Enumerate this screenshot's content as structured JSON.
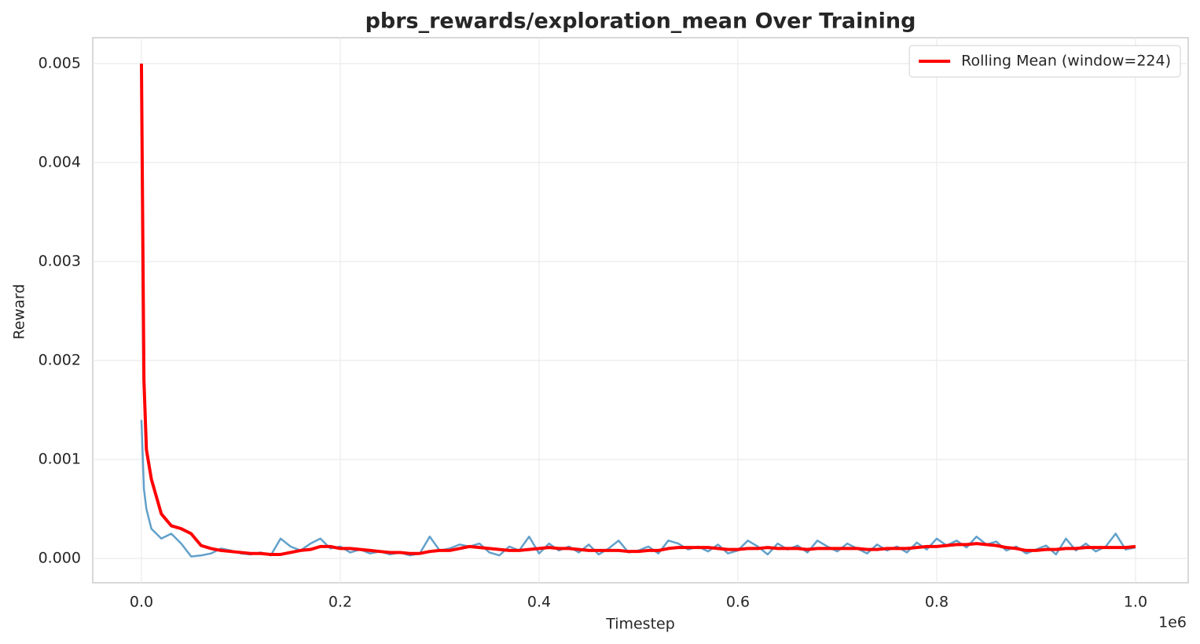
{
  "chart_data": {
    "type": "line",
    "title": "pbrs_rewards/exploration_mean Over Training",
    "x_label": "Timestep",
    "y_label": "Reward",
    "x_offset_label": "1e6",
    "xlim": [
      -49000,
      1053000
    ],
    "ylim": [
      -0.000246,
      0.005262
    ],
    "xticks": [
      {
        "value": 0,
        "label": "0.0"
      },
      {
        "value": 200000,
        "label": "0.2"
      },
      {
        "value": 400000,
        "label": "0.4"
      },
      {
        "value": 600000,
        "label": "0.6"
      },
      {
        "value": 800000,
        "label": "0.8"
      },
      {
        "value": 1000000,
        "label": "1.0"
      }
    ],
    "yticks": [
      {
        "value": 0,
        "label": "0.000"
      },
      {
        "value": 0.001,
        "label": "0.001"
      },
      {
        "value": 0.002,
        "label": "0.002"
      },
      {
        "value": 0.003,
        "label": "0.003"
      },
      {
        "value": 0.004,
        "label": "0.004"
      },
      {
        "value": 0.005,
        "label": "0.005"
      }
    ],
    "grid": true,
    "legend": "upper right",
    "x": [
      0,
      2500,
      5000,
      10000,
      20000,
      30000,
      40000,
      50000,
      60000,
      70000,
      80000,
      90000,
      100000,
      110000,
      120000,
      130000,
      140000,
      150000,
      160000,
      170000,
      180000,
      190000,
      200000,
      210000,
      220000,
      230000,
      240000,
      250000,
      260000,
      270000,
      280000,
      290000,
      300000,
      310000,
      320000,
      330000,
      340000,
      350000,
      360000,
      370000,
      380000,
      390000,
      400000,
      410000,
      420000,
      430000,
      440000,
      450000,
      460000,
      470000,
      480000,
      490000,
      500000,
      510000,
      520000,
      530000,
      540000,
      550000,
      560000,
      570000,
      580000,
      590000,
      600000,
      610000,
      620000,
      630000,
      640000,
      650000,
      660000,
      670000,
      680000,
      690000,
      700000,
      710000,
      720000,
      730000,
      740000,
      750000,
      760000,
      770000,
      780000,
      790000,
      800000,
      810000,
      820000,
      830000,
      840000,
      850000,
      860000,
      870000,
      880000,
      890000,
      900000,
      910000,
      920000,
      930000,
      940000,
      950000,
      960000,
      970000,
      980000,
      990000,
      1000000
    ],
    "series": [
      {
        "color": "#62a0ca",
        "width": 2.5,
        "values": [
          0.0014,
          0.0007,
          0.0005,
          0.0003,
          0.0002,
          0.00025,
          0.00015,
          2e-05,
          3e-05,
          5e-05,
          0.0001,
          8e-05,
          5e-05,
          4e-05,
          6e-05,
          3e-05,
          0.0002,
          0.00012,
          8e-05,
          0.00015,
          0.0002,
          0.0001,
          0.00012,
          6e-05,
          9e-05,
          5e-05,
          7e-05,
          4e-05,
          6e-05,
          3e-05,
          5e-05,
          0.00022,
          8e-05,
          0.0001,
          0.00014,
          0.00012,
          0.00015,
          6e-05,
          3e-05,
          0.00012,
          8e-05,
          0.00022,
          5e-05,
          0.00015,
          8e-05,
          0.00012,
          6e-05,
          0.00014,
          4e-05,
          0.0001,
          0.00018,
          6e-05,
          8e-05,
          0.00012,
          5e-05,
          0.00018,
          0.00015,
          9e-05,
          0.00012,
          7e-05,
          0.00014,
          5e-05,
          8e-05,
          0.00018,
          0.00012,
          4e-05,
          0.00015,
          9e-05,
          0.00013,
          6e-05,
          0.00018,
          0.00012,
          7e-05,
          0.00015,
          0.0001,
          5e-05,
          0.00014,
          8e-05,
          0.00012,
          6e-05,
          0.00016,
          9e-05,
          0.0002,
          0.00013,
          0.00018,
          0.00011,
          0.00022,
          0.00014,
          0.00017,
          8e-05,
          0.00012,
          5e-05,
          9e-05,
          0.00013,
          4e-05,
          0.0002,
          8e-05,
          0.00015,
          7e-05,
          0.00012,
          0.00025,
          9e-05,
          0.00011
        ]
      },
      {
        "name": "Rolling Mean (window=224)",
        "color": "#ff0000",
        "width": 4,
        "values": [
          0.005,
          0.0018,
          0.0011,
          0.0008,
          0.00045,
          0.00033,
          0.0003,
          0.00025,
          0.00013,
          0.0001,
          8e-05,
          7e-05,
          6e-05,
          5e-05,
          5e-05,
          4e-05,
          4e-05,
          6e-05,
          8e-05,
          9e-05,
          0.00012,
          0.00012,
          0.0001,
          0.0001,
          9e-05,
          8e-05,
          7e-05,
          6e-05,
          6e-05,
          5e-05,
          5e-05,
          7e-05,
          8e-05,
          8e-05,
          0.0001,
          0.00012,
          0.00011,
          0.0001,
          9e-05,
          8e-05,
          8e-05,
          9e-05,
          0.0001,
          0.00011,
          0.0001,
          0.0001,
          9e-05,
          8e-05,
          8e-05,
          8e-05,
          8e-05,
          7e-05,
          7e-05,
          8e-05,
          8e-05,
          0.0001,
          0.00011,
          0.00011,
          0.00011,
          0.00011,
          0.0001,
          9e-05,
          9e-05,
          0.0001,
          0.0001,
          0.00011,
          0.0001,
          0.0001,
          0.0001,
          9e-05,
          0.0001,
          0.0001,
          0.0001,
          0.0001,
          0.0001,
          9e-05,
          9e-05,
          0.0001,
          0.0001,
          0.0001,
          0.00011,
          0.00012,
          0.00012,
          0.00013,
          0.00014,
          0.00014,
          0.00015,
          0.00014,
          0.00013,
          0.00011,
          0.0001,
          8e-05,
          8e-05,
          9e-05,
          9e-05,
          0.0001,
          0.0001,
          0.00011,
          0.00011,
          0.00011,
          0.00011,
          0.00011,
          0.00012
        ]
      }
    ]
  }
}
